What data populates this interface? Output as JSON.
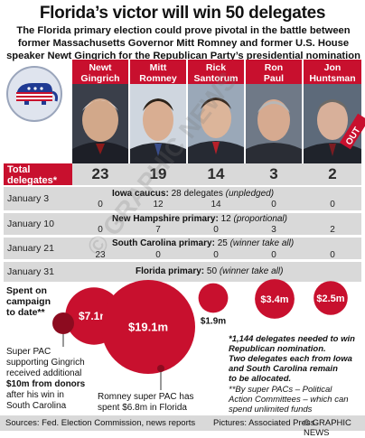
{
  "title": "Florida’s victor will win 50 delegates",
  "subtitle": "The Florida primary election could prove pivotal in the battle between former Massachusetts Governor Mitt Romney and former U.S. House speaker Newt Gingrich for the Republican Party’s presidential nomination",
  "candidates": [
    {
      "name_line1": "Newt",
      "name_line2": "Gingrich"
    },
    {
      "name_line1": "Mitt",
      "name_line2": "Romney"
    },
    {
      "name_line1": "Rick",
      "name_line2": "Santorum"
    },
    {
      "name_line1": "Ron",
      "name_line2": "Paul"
    },
    {
      "name_line1": "Jon",
      "name_line2": "Huntsman"
    }
  ],
  "out_label": "OUT",
  "colors": {
    "accent": "#c8102e",
    "band": "#d9d9d9"
  },
  "total_label_line1": "Total",
  "total_label_line2": "delegates*",
  "chart_data": {
    "type": "table",
    "columns": [
      "Newt Gingrich",
      "Mitt Romney",
      "Rick Santorum",
      "Ron Paul",
      "Jon Huntsman"
    ],
    "totals": [
      "23",
      "19",
      "14",
      "3",
      "2"
    ],
    "rows": [
      {
        "date": "January 3",
        "contest": "Iowa caucus:",
        "delegates": "28 delegates",
        "note": "(unpledged)",
        "values": [
          "0",
          "12",
          "14",
          "0",
          "0"
        ]
      },
      {
        "date": "January 10",
        "contest": "New Hampshire primary:",
        "delegates": "12",
        "note": "(proportional)",
        "values": [
          "0",
          "7",
          "0",
          "3",
          "2"
        ]
      },
      {
        "date": "January 21",
        "contest": "South Carolina primary:",
        "delegates": "25",
        "note": "(winner take all)",
        "values": [
          "23",
          "0",
          "0",
          "0",
          "0"
        ]
      },
      {
        "date": "January 31",
        "contest": "Florida primary:",
        "delegates": "50",
        "note": "(winner take all)",
        "values": []
      }
    ],
    "spending": {
      "label_line1": "Spent on",
      "label_line2": "campaign",
      "label_line3": "to date**",
      "unit": "$m",
      "values": [
        {
          "candidate": "Newt Gingrich",
          "label": "$7.1m",
          "value": 7.1
        },
        {
          "candidate": "Mitt Romney",
          "label": "$19.1m",
          "value": 19.1
        },
        {
          "candidate": "Rick Santorum",
          "label": "$1.9m",
          "value": 1.9
        },
        {
          "candidate": "Ron Paul",
          "label": "$3.4m",
          "value": 3.4
        },
        {
          "candidate": "Jon Huntsman",
          "label": "$2.5m",
          "value": 2.5
        }
      ]
    }
  },
  "annotations": {
    "gingrich_pac": [
      "Super PAC",
      "supporting Gingrich",
      "received additional",
      "$10m from donors",
      "after his win in",
      "South Carolina"
    ],
    "romney_pac": [
      "Romney super PAC has",
      "spent $6.8m in Florida"
    ],
    "footnote1": [
      "*1,144 delegates needed to win",
      "Republican nomination.",
      "Two delegates each from Iowa",
      "and South Carolina remain",
      "to be allocated."
    ],
    "footnote2": [
      "**By super PACs – Political",
      "Action Committees – which can",
      "spend unlimited funds"
    ]
  },
  "footer": {
    "sources": "Sources: Fed. Election Commission, news reports",
    "pictures": "Pictures: Associated Press",
    "credit": "© GRAPHIC NEWS"
  },
  "watermark": "© GRAPHIC NEWS"
}
